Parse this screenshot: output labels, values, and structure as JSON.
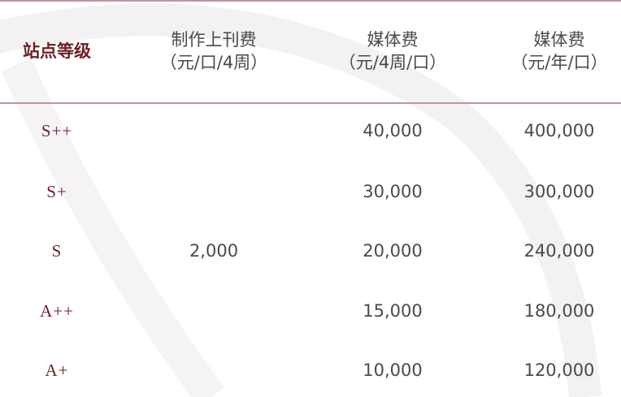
{
  "table": {
    "headers": [
      {
        "line1": "站点等级",
        "line2": ""
      },
      {
        "line1": "制作上刊费",
        "line2": "（元/口/4周）"
      },
      {
        "line1": "媒体费",
        "line2": "（元/4周/口）"
      },
      {
        "line1": "媒体费",
        "line2": "（元/年/口）"
      }
    ],
    "production_fee": "2,000",
    "rows": [
      {
        "grade": "S++",
        "media_4w": "40,000",
        "media_year": "400,000"
      },
      {
        "grade": "S+",
        "media_4w": "30,000",
        "media_year": "300,000"
      },
      {
        "grade": "S",
        "media_4w": "20,000",
        "media_year": "240,000"
      },
      {
        "grade": "A++",
        "media_4w": "15,000",
        "media_year": "180,000"
      },
      {
        "grade": "A+",
        "media_4w": "10,000",
        "media_year": "120,000"
      }
    ]
  },
  "colors": {
    "accent": "#6e1f25",
    "text": "#4a4a4a",
    "rule": "#b79a9b"
  }
}
